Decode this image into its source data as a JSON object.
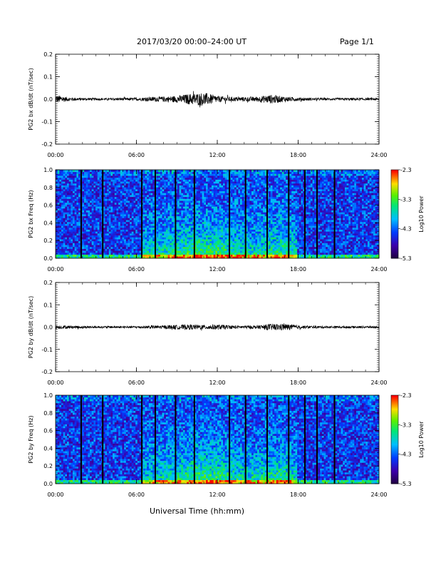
{
  "header": {
    "title": "2017/03/20  00:00–24:00 UT",
    "page": "Page 1/1",
    "xlabel": "Universal Time (hh:mm)"
  },
  "chart_data": [
    {
      "type": "line",
      "ylabel": "PG2 bx dB/dt (nT/sec)",
      "xlim": [
        0,
        24
      ],
      "ylim": [
        -0.2,
        0.2
      ],
      "xticks": [
        "00:00",
        "06:00",
        "12:00",
        "18:00",
        "24:00"
      ],
      "yticks": [
        "0.2",
        "0.1",
        "0.0",
        "-0.1",
        "-0.2"
      ],
      "series": [
        {
          "x": [
            0,
            1,
            2,
            3,
            4,
            5,
            6,
            7,
            8,
            9,
            10,
            11,
            12,
            13,
            14,
            15,
            16,
            17,
            18,
            19,
            20,
            21,
            22,
            23,
            24
          ],
          "amplitude": [
            0.02,
            0.008,
            0.006,
            0.005,
            0.005,
            0.006,
            0.006,
            0.01,
            0.012,
            0.015,
            0.025,
            0.03,
            0.015,
            0.01,
            0.01,
            0.012,
            0.02,
            0.012,
            0.008,
            0.006,
            0.005,
            0.005,
            0.006,
            0.005,
            0.005
          ]
        }
      ]
    },
    {
      "type": "heatmap",
      "ylabel": "PG2 bx Freq (Hz)",
      "xlim": [
        0,
        24
      ],
      "ylim": [
        0,
        1
      ],
      "xticks": [
        "00:00",
        "06:00",
        "12:00",
        "18:00",
        "24:00"
      ],
      "yticks": [
        "1.0",
        "0.8",
        "0.6",
        "0.4",
        "0.2",
        "0.0"
      ],
      "colorbar": {
        "label": "Log10 Power",
        "ticks": [
          "-2.3",
          "-3.3",
          "-4.3",
          "-5.3"
        ],
        "range": [
          -5.3,
          -2.3
        ]
      },
      "data_gaps_hours": [
        1.9,
        3.5,
        6.4,
        7.4,
        8.9,
        10.3,
        12.9,
        14.1,
        15.7,
        17.3,
        18.5,
        19.4,
        20.7
      ]
    },
    {
      "type": "line",
      "ylabel": "PG2 by dB/dt (nT/sec)",
      "xlim": [
        0,
        24
      ],
      "ylim": [
        -0.2,
        0.2
      ],
      "xticks": [
        "00:00",
        "06:00",
        "12:00",
        "18:00",
        "24:00"
      ],
      "yticks": [
        "0.2",
        "0.1",
        "0.0",
        "-0.1",
        "-0.2"
      ],
      "series": [
        {
          "x": [
            0,
            1,
            2,
            3,
            4,
            5,
            6,
            7,
            8,
            9,
            10,
            11,
            12,
            13,
            14,
            15,
            16,
            17,
            18,
            19,
            20,
            21,
            22,
            23,
            24
          ],
          "amplitude": [
            0.008,
            0.007,
            0.006,
            0.005,
            0.005,
            0.005,
            0.005,
            0.007,
            0.008,
            0.01,
            0.012,
            0.01,
            0.012,
            0.008,
            0.007,
            0.008,
            0.015,
            0.015,
            0.008,
            0.006,
            0.005,
            0.005,
            0.005,
            0.005,
            0.005
          ]
        }
      ]
    },
    {
      "type": "heatmap",
      "ylabel": "PG2 by Freq (Hz)",
      "xlim": [
        0,
        24
      ],
      "ylim": [
        0,
        1
      ],
      "xticks": [
        "00:00",
        "06:00",
        "12:00",
        "18:00",
        "24:00"
      ],
      "yticks": [
        "1.0",
        "0.8",
        "0.6",
        "0.4",
        "0.2",
        "0.0"
      ],
      "colorbar": {
        "label": "Log10 Power",
        "ticks": [
          "-2.3",
          "-3.3",
          "-4.3",
          "-5.3"
        ],
        "range": [
          -5.3,
          -2.3
        ]
      },
      "data_gaps_hours": [
        1.9,
        3.5,
        6.4,
        7.4,
        8.9,
        10.3,
        12.9,
        14.1,
        15.7,
        17.3,
        18.5,
        19.4,
        20.7
      ]
    }
  ]
}
